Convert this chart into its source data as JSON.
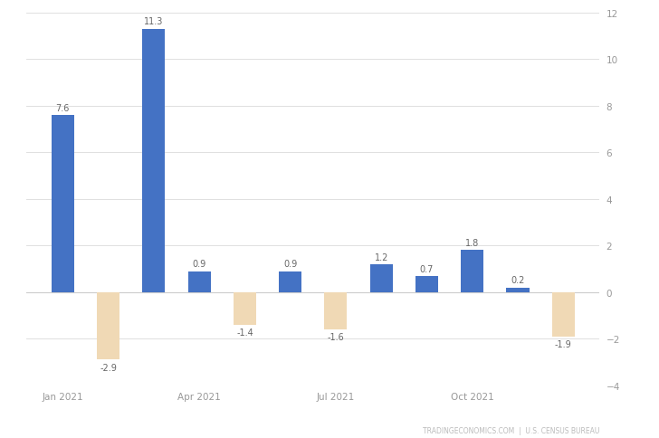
{
  "values": [
    7.6,
    -2.9,
    11.3,
    0.9,
    -1.4,
    0.9,
    -1.6,
    1.2,
    0.7,
    1.8,
    0.2,
    -1.9
  ],
  "bar_colors_positive": "#4472c4",
  "bar_colors_negative": "#f0d9b5",
  "ylim": [
    -4,
    12
  ],
  "yticks": [
    -4,
    -2,
    0,
    2,
    4,
    6,
    8,
    10,
    12
  ],
  "xtick_labels": [
    "Jan 2021",
    "Apr 2021",
    "Jul 2021",
    "Oct 2021"
  ],
  "xtick_positions": [
    0,
    3,
    6,
    9
  ],
  "watermark": "TRADINGECONOMICS.COM  |  U.S. CENSUS BUREAU",
  "background_color": "#ffffff",
  "grid_color": "#e0e0e0",
  "label_fontsize": 7.0,
  "tick_fontsize": 7.5,
  "watermark_fontsize": 5.5,
  "bar_width": 0.5
}
